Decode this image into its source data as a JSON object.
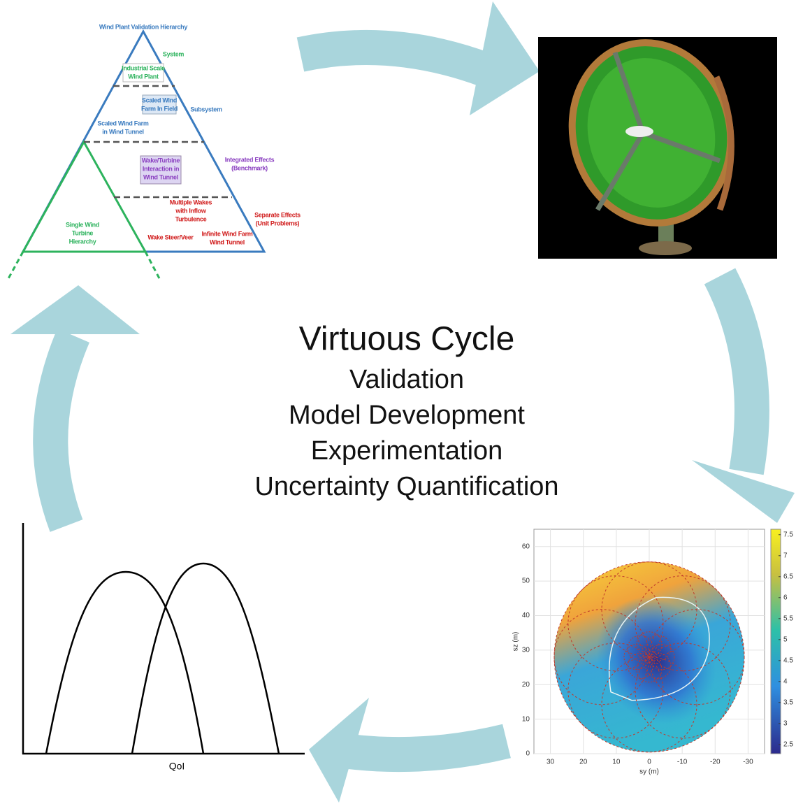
{
  "center": {
    "title": "Virtuous Cycle",
    "items": [
      "Validation",
      "Model Development",
      "Experimentation",
      "Uncertainty Quantification"
    ]
  },
  "pyramid": {
    "title": "Wind Plant Validation Hierarchy",
    "labels": [
      {
        "lines": [
          "System"
        ]
      },
      {
        "lines": [
          "Industrial Scale",
          "Wind Plant"
        ]
      },
      {
        "lines": [
          "Scaled Wind",
          "Farm In Field"
        ]
      },
      {
        "lines": [
          "Subsystem"
        ]
      },
      {
        "lines": [
          "Scaled Wind Farm",
          "in Wind Tunnel"
        ]
      },
      {
        "lines": [
          "Wake/Turbine",
          "Interaction in",
          "Wind Tunnel"
        ]
      },
      {
        "lines": [
          "Integrated Effects",
          "(Benchmark)"
        ]
      },
      {
        "lines": [
          "Multiple Wakes",
          "with Inflow",
          "Turbulence"
        ]
      },
      {
        "lines": [
          "Separate Effects",
          "(Unit Problems)"
        ]
      },
      {
        "lines": [
          "Single Wind",
          "Turbine",
          "Hierarchy"
        ]
      },
      {
        "lines": [
          "Wake Steer/Veer"
        ]
      },
      {
        "lines": [
          "Infinite Wind Farm",
          "Wind Tunnel"
        ]
      }
    ]
  },
  "plot": {
    "xlabel": "sy (m)",
    "ylabel": "sz (m)",
    "xlim": [
      35,
      -35
    ],
    "ylim": [
      0,
      65
    ],
    "xticks": [
      30,
      20,
      10,
      0,
      -10,
      -20,
      -30
    ],
    "yticks": [
      0,
      10,
      20,
      30,
      40,
      50,
      60
    ],
    "clim": [
      2.28,
      7.63
    ],
    "cticks": [
      2.5,
      3,
      3.5,
      4,
      4.5,
      5,
      5.5,
      6,
      6.5,
      7,
      7.5
    ]
  },
  "distribution": {
    "xlabel": "QoI"
  }
}
